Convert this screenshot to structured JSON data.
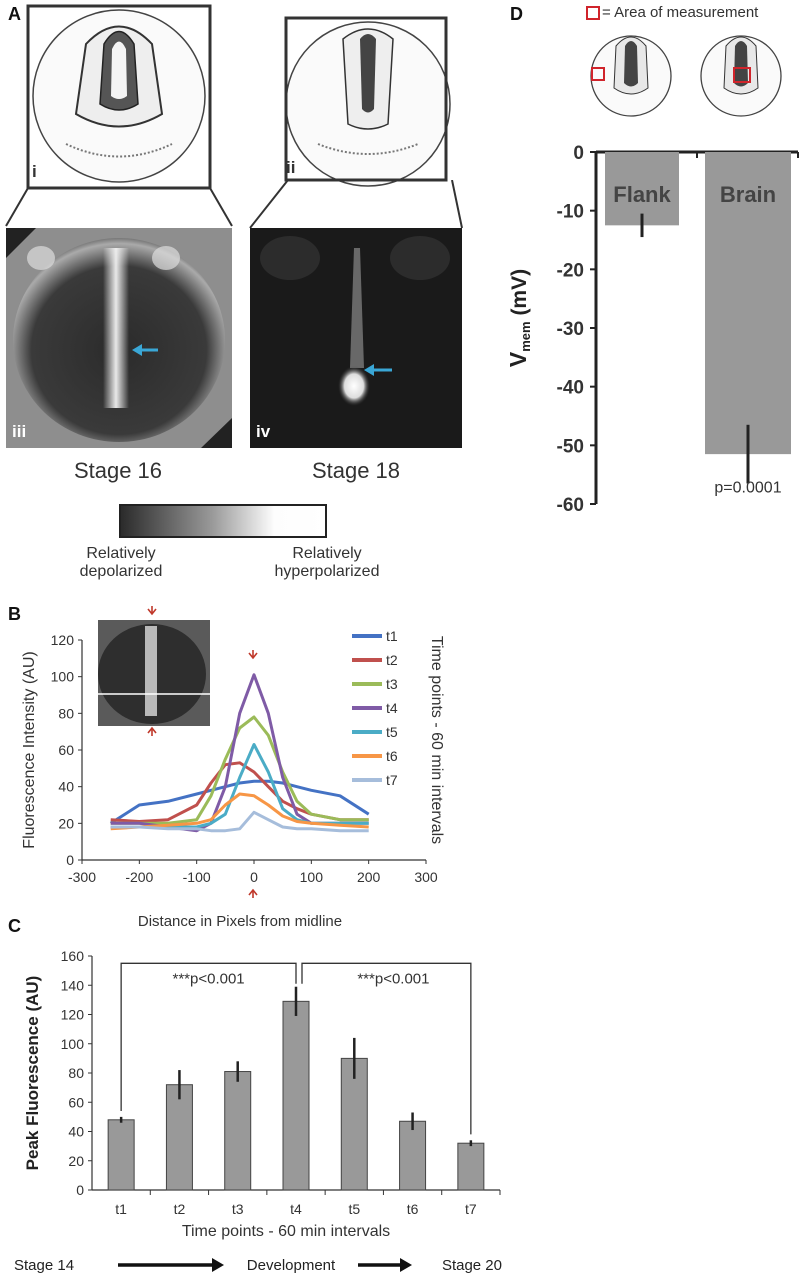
{
  "panel_a": {
    "letter": "A",
    "roman_i": "i",
    "roman_ii": "ii",
    "roman_iii": "iii",
    "roman_iv": "iv",
    "stage_left": "Stage 16",
    "stage_right": "Stage 18",
    "scale_left_line1": "Relatively",
    "scale_left_line2": "depolarized",
    "scale_right_line1": "Relatively",
    "scale_right_line2": "hyperpolarized"
  },
  "panel_b_letter": "B",
  "panel_c_letter": "C",
  "panel_d_letter": "D",
  "panel_d_legend": "= Area of measurement",
  "colors": {
    "arrow_blue": "#3aa7d6",
    "arrow_red": "#c0392b",
    "bar_grey": "#999999"
  },
  "chart_data": [
    {
      "id": "B",
      "type": "line",
      "title": "",
      "xlabel": "Distance in Pixels from midline",
      "ylabel": "Fluorescence Intensity (AU)",
      "legend_title": "Time points - 60 min intervals",
      "xlim": [
        -300,
        300
      ],
      "ylim": [
        0,
        120
      ],
      "x_ticks": [
        -300,
        -200,
        -100,
        0,
        100,
        200,
        300
      ],
      "y_ticks": [
        0,
        20,
        40,
        60,
        80,
        100,
        120
      ],
      "x": [
        -250,
        -200,
        -150,
        -100,
        -75,
        -50,
        -25,
        0,
        25,
        50,
        75,
        100,
        150,
        200
      ],
      "series": [
        {
          "name": "t1",
          "color": "#4472c4",
          "values": [
            20,
            30,
            32,
            36,
            38,
            40,
            42,
            43,
            43,
            42,
            40,
            38,
            35,
            25
          ]
        },
        {
          "name": "t2",
          "color": "#c0504d",
          "values": [
            22,
            21,
            22,
            30,
            42,
            52,
            53,
            48,
            40,
            32,
            28,
            25,
            22,
            22
          ]
        },
        {
          "name": "t3",
          "color": "#9bbb59",
          "values": [
            20,
            20,
            20,
            22,
            35,
            55,
            72,
            78,
            68,
            48,
            32,
            25,
            22,
            22
          ]
        },
        {
          "name": "t4",
          "color": "#7f5ba6",
          "values": [
            20,
            20,
            18,
            16,
            20,
            40,
            80,
            101,
            80,
            45,
            25,
            20,
            20,
            20
          ]
        },
        {
          "name": "t5",
          "color": "#4bacc6",
          "values": [
            18,
            18,
            18,
            18,
            20,
            25,
            45,
            63,
            48,
            28,
            22,
            20,
            20,
            20
          ]
        },
        {
          "name": "t6",
          "color": "#f79646",
          "values": [
            17,
            18,
            19,
            20,
            22,
            30,
            36,
            35,
            30,
            24,
            21,
            20,
            19,
            18
          ]
        },
        {
          "name": "t7",
          "color": "#a6bddb",
          "values": [
            18,
            18,
            17,
            17,
            16,
            16,
            17,
            26,
            22,
            18,
            17,
            17,
            16,
            16
          ]
        }
      ]
    },
    {
      "id": "C",
      "type": "bar",
      "title": "",
      "xlabel": "Time points - 60 min intervals",
      "ylabel": "Peak Fluorescence (AU)",
      "ylim": [
        0,
        160
      ],
      "y_ticks": [
        0,
        20,
        40,
        60,
        80,
        100,
        120,
        140,
        160
      ],
      "categories": [
        "t1",
        "t2",
        "t3",
        "t4",
        "t5",
        "t6",
        "t7"
      ],
      "values": [
        48,
        72,
        81,
        129,
        90,
        47,
        32
      ],
      "errors": [
        2,
        10,
        7,
        10,
        14,
        6,
        2
      ],
      "annotations": [
        "***p<0.001",
        "***p<0.001"
      ],
      "bottom_labels": [
        "Stage 14",
        "Development",
        "Stage 20"
      ]
    },
    {
      "id": "D",
      "type": "bar",
      "title": "",
      "xlabel": "",
      "ylabel_main": "V",
      "ylabel_sub": "mem",
      "ylabel_unit": "(mV)",
      "ylim": [
        -60,
        0
      ],
      "y_ticks": [
        0,
        -10,
        -20,
        -30,
        -40,
        -50,
        -60
      ],
      "categories": [
        "Flank",
        "Brain"
      ],
      "values": [
        -12.5,
        -51.5
      ],
      "errors": [
        2,
        5
      ],
      "annotation": "p=0.0001"
    }
  ]
}
